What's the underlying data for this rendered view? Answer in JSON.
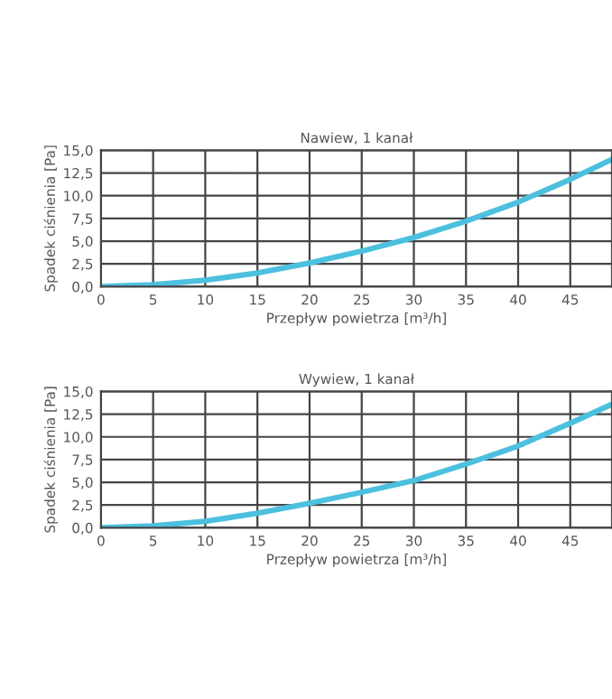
{
  "chart_data": [
    {
      "type": "line",
      "title": "Nawiew, 1 kanał",
      "xlabel": "Przepływ powietrza [m³/h]",
      "ylabel": "Spadek ciśnienia [Pa]",
      "x": [
        0,
        5,
        10,
        15,
        20,
        25,
        30,
        35,
        40,
        45,
        49
      ],
      "series": [
        {
          "color": "#4cc0de",
          "values": [
            0,
            0.2,
            0.7,
            1.5,
            2.6,
            3.9,
            5.4,
            7.2,
            9.3,
            11.8,
            14.0
          ]
        }
      ],
      "xlim": [
        0,
        49
      ],
      "xticks": [
        0,
        5,
        10,
        15,
        20,
        25,
        30,
        35,
        40,
        45
      ],
      "ylim": [
        0,
        15
      ],
      "yticks": [
        {
          "value": 0,
          "label": "0,0"
        },
        {
          "value": 2.5,
          "label": "2,5"
        },
        {
          "value": 5,
          "label": "5,0"
        },
        {
          "value": 7.5,
          "label": "7,5"
        },
        {
          "value": 10,
          "label": "10,0"
        },
        {
          "value": 12.5,
          "label": "12,5"
        },
        {
          "value": 15,
          "label": "15,0"
        }
      ],
      "grid": true
    },
    {
      "type": "line",
      "title": "Wywiew, 1 kanał",
      "xlabel": "Przepływ powietrza [m³/h]",
      "ylabel": "Spadek ciśnienia [Pa]",
      "x": [
        0,
        5,
        10,
        15,
        20,
        25,
        30,
        35,
        40,
        45,
        49
      ],
      "series": [
        {
          "color": "#4cc0de",
          "values": [
            0,
            0.2,
            0.7,
            1.6,
            2.7,
            3.9,
            5.2,
            7.0,
            9.0,
            11.5,
            13.6
          ]
        }
      ],
      "xlim": [
        0,
        49
      ],
      "xticks": [
        0,
        5,
        10,
        15,
        20,
        25,
        30,
        35,
        40,
        45
      ],
      "ylim": [
        0,
        15
      ],
      "yticks": [
        {
          "value": 0,
          "label": "0,0"
        },
        {
          "value": 2.5,
          "label": "2,5"
        },
        {
          "value": 5,
          "label": "5,0"
        },
        {
          "value": 7.5,
          "label": "7,5"
        },
        {
          "value": 10,
          "label": "10,0"
        },
        {
          "value": 12.5,
          "label": "12,5"
        },
        {
          "value": 15,
          "label": "15,0"
        }
      ],
      "grid": true
    }
  ]
}
